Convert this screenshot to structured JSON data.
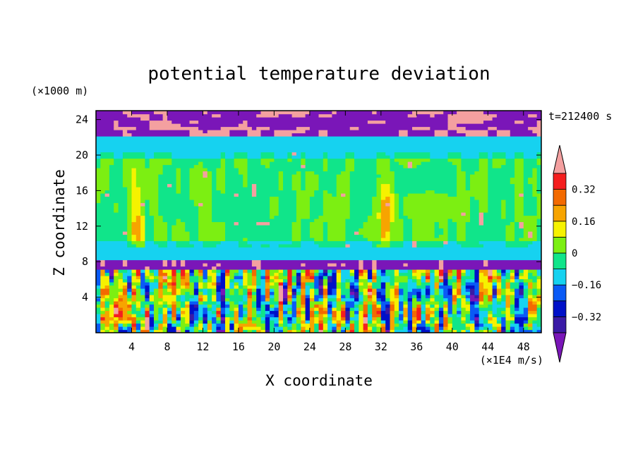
{
  "chart_data": {
    "type": "heatmap",
    "title": "potential temperature deviation",
    "time_label": "t=212400 s",
    "xlabel": "X coordinate",
    "x_unit": "(×1E4 m/s)",
    "ylabel": "Z coordinate",
    "y_unit": "(×1000 m)",
    "xlim": [
      0,
      50
    ],
    "ylim": [
      0,
      25
    ],
    "x_ticks": [
      4,
      8,
      12,
      16,
      20,
      24,
      28,
      32,
      36,
      40,
      44,
      48
    ],
    "y_ticks": [
      4,
      8,
      12,
      16,
      20,
      24
    ],
    "colorbar": {
      "labels": [
        "0.32",
        "0.16",
        "0",
        "−0.16",
        "−0.32"
      ],
      "label_values": [
        0.32,
        0.16,
        0,
        -0.16,
        -0.32
      ],
      "levels": [
        -0.4,
        -0.32,
        -0.24,
        -0.16,
        -0.08,
        0,
        0.08,
        0.16,
        0.24,
        0.32,
        0.4
      ],
      "colors": [
        "#7a16b8",
        "#3a1aa6",
        "#0010c8",
        "#0a5af5",
        "#16d2f0",
        "#10e58a",
        "#7cef12",
        "#f6f200",
        "#f7a400",
        "#f36a00",
        "#f51e1e",
        "#f4a0a0"
      ],
      "extend": "both"
    },
    "layers": [
      {
        "z": [
          22,
          25
        ],
        "value": -0.42,
        "note": "purple cap with pink streaks"
      },
      {
        "z": [
          20.5,
          22
        ],
        "value": -0.12
      },
      {
        "z": [
          9.5,
          20.5
        ],
        "value": 0.02,
        "columns_warm_x": [
          4.5,
          32.5
        ]
      },
      {
        "z": [
          8.3,
          9.5
        ],
        "value": -0.1
      },
      {
        "z": [
          7,
          8.3
        ],
        "value": -0.42
      },
      {
        "z": [
          0,
          7
        ],
        "value": "mixed",
        "note": "turbulent convective layer"
      }
    ]
  }
}
